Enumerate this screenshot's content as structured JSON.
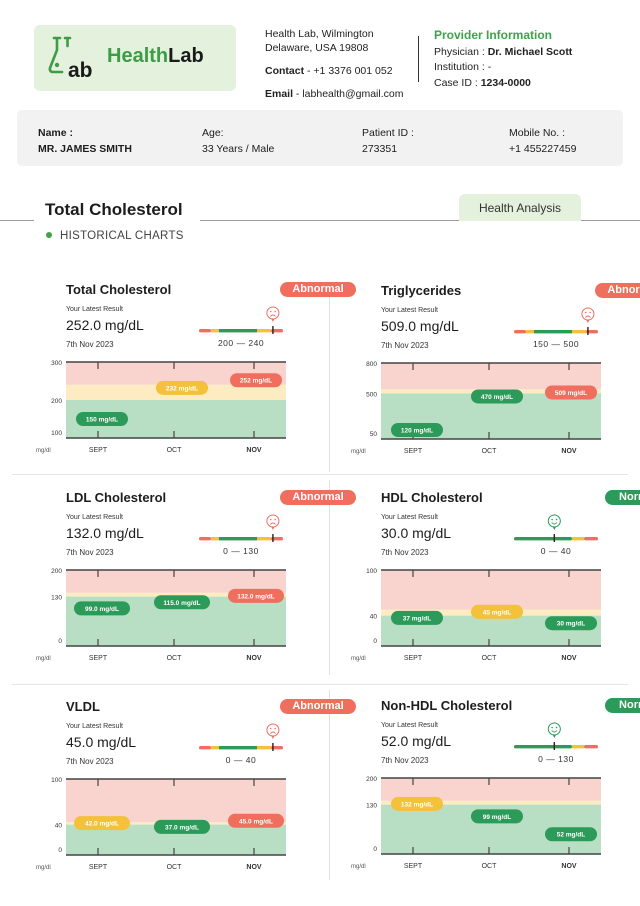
{
  "header": {
    "brand_prefix": "Health",
    "brand_suffix": "Lab",
    "address_line1": "Health Lab, Wilmington",
    "address_line2": "Delaware, USA 19808",
    "contact_label": "Contact",
    "contact_value": " - +1 3376 001 052",
    "email_label": "Email",
    "email_value": " - labhealth@gmail.com",
    "provider": {
      "heading": "Provider Information",
      "physician_label": "Physician : ",
      "physician_name": "Dr. Michael Scott",
      "institution_label": "Institution : -",
      "case_label": "Case ID : ",
      "case_id": "1234-0000"
    }
  },
  "patient": {
    "name_label": "Name :",
    "name": "MR. JAMES SMITH",
    "age_label": "Age:",
    "age": "33 Years / Male",
    "id_label": "Patient ID :",
    "id": "273351",
    "mobile_label": "Mobile No. :",
    "mobile": "+1 455227459"
  },
  "section": {
    "title": "Total Cholesterol",
    "tab": "Health Analysis",
    "subtitle": "HISTORICAL CHARTS"
  },
  "colors": {
    "green": "#2c9a58",
    "yellow": "#f3c13a",
    "red": "#ef6e5e",
    "band_red": "#f9d3cd",
    "band_yellow": "#fdecc2",
    "band_green": "#b8dfc4",
    "accent_green": "#3ea34a"
  },
  "cards": [
    {
      "title": "Total Cholesterol",
      "status": "Abnormal",
      "status_type": "abnormal",
      "latest_label": "Your Latest Result",
      "value": "252.0 mg/dL",
      "date": "7th Nov 2023",
      "range": "200 — 240",
      "gauge_position": 0.88,
      "face": "sad-face-icon",
      "chart_data": {
        "type": "line",
        "x": [
          "SEPT",
          "OCT",
          "NOV"
        ],
        "y_ticks": [
          "300",
          "200",
          "100"
        ],
        "y_unit": "mg/dl",
        "ylim": [
          100,
          300
        ],
        "normal_max": 200,
        "borderline_max": 240,
        "points": [
          {
            "x": "SEPT",
            "value": 150,
            "label": "150 mg/dL",
            "status": "green"
          },
          {
            "x": "OCT",
            "value": 232,
            "label": "232 mg/dL",
            "status": "yellow"
          },
          {
            "x": "NOV",
            "value": 252,
            "label": "252 mg/dL",
            "status": "red"
          }
        ]
      }
    },
    {
      "title": "Triglycerides",
      "status": "Abnormal",
      "status_type": "abnormal",
      "latest_label": "Your Latest Result",
      "value": "509.0 mg/dL",
      "date": "7th Nov 2023",
      "range": "150 — 500",
      "gauge_position": 0.88,
      "face": "sad-face-icon",
      "chart_data": {
        "type": "line",
        "x": [
          "SEPT",
          "OCT",
          "NOV"
        ],
        "y_ticks": [
          "800",
          "500",
          "50"
        ],
        "y_unit": "mg/dl",
        "ylim": [
          50,
          800
        ],
        "normal_max": 500,
        "borderline_max": 540,
        "points": [
          {
            "x": "SEPT",
            "value": 120,
            "label": "120 mg/dL",
            "status": "green"
          },
          {
            "x": "OCT",
            "value": 470,
            "label": "470 mg/dL",
            "status": "green"
          },
          {
            "x": "NOV",
            "value": 509,
            "label": "509 mg/dL",
            "status": "red"
          }
        ]
      }
    },
    {
      "title": "LDL Cholesterol",
      "status": "Abnormal",
      "status_type": "abnormal",
      "latest_label": "Your Latest Result",
      "value": "132.0 mg/dL",
      "date": "7th Nov 2023",
      "range": "0 — 130",
      "gauge_position": 0.88,
      "face": "sad-face-icon",
      "chart_data": {
        "type": "line",
        "x": [
          "SEPT",
          "OCT",
          "NOV"
        ],
        "y_ticks": [
          "200",
          "130",
          "0"
        ],
        "y_unit": "mg/dl",
        "ylim": [
          0,
          200
        ],
        "normal_max": 130,
        "borderline_max": 140,
        "points": [
          {
            "x": "SEPT",
            "value": 99,
            "label": "99.0 mg/dL",
            "status": "green"
          },
          {
            "x": "OCT",
            "value": 115,
            "label": "115.0 mg/dL",
            "status": "green"
          },
          {
            "x": "NOV",
            "value": 132,
            "label": "132.0 mg/dL",
            "status": "red"
          }
        ]
      }
    },
    {
      "title": "HDL Cholesterol",
      "status": "Normal",
      "status_type": "normal",
      "latest_label": "Your Latest Result",
      "value": "30.0 mg/dL",
      "date": "7th Nov 2023",
      "range": "0 — 40",
      "gauge_position": 0.48,
      "face": "smile-face-icon",
      "chart_data": {
        "type": "line",
        "x": [
          "SEPT",
          "OCT",
          "NOV"
        ],
        "y_ticks": [
          "100",
          "40",
          "0"
        ],
        "y_unit": "mg/dl",
        "ylim": [
          0,
          100
        ],
        "normal_max": 40,
        "borderline_max": 48,
        "points": [
          {
            "x": "SEPT",
            "value": 37,
            "label": "37 mg/dL",
            "status": "green"
          },
          {
            "x": "OCT",
            "value": 45,
            "label": "45 mg/dL",
            "status": "yellow"
          },
          {
            "x": "NOV",
            "value": 30,
            "label": "30 mg/dL",
            "status": "green"
          }
        ]
      }
    },
    {
      "title": "VLDL",
      "status": "Abnormal",
      "status_type": "abnormal",
      "latest_label": "Your Latest Result",
      "value": "45.0 mg/dL",
      "date": "7th Nov 2023",
      "range": "0 — 40",
      "gauge_position": 0.88,
      "face": "sad-face-icon",
      "chart_data": {
        "type": "line",
        "x": [
          "SEPT",
          "OCT",
          "NOV"
        ],
        "y_ticks": [
          "100",
          "40",
          "0"
        ],
        "y_unit": "mg/dl",
        "ylim": [
          0,
          100
        ],
        "normal_max": 40,
        "borderline_max": 43,
        "points": [
          {
            "x": "SEPT",
            "value": 42,
            "label": "42.0 mg/dL",
            "status": "yellow"
          },
          {
            "x": "OCT",
            "value": 37,
            "label": "37.0 mg/dL",
            "status": "green"
          },
          {
            "x": "NOV",
            "value": 45,
            "label": "45.0 mg/dL",
            "status": "red"
          }
        ]
      }
    },
    {
      "title": "Non-HDL Cholesterol",
      "status": "Normal",
      "status_type": "normal",
      "latest_label": "Your Latest Result",
      "value": "52.0 mg/dL",
      "date": "7th Nov 2023",
      "range": "0 — 130",
      "gauge_position": 0.48,
      "face": "smile-face-icon",
      "chart_data": {
        "type": "line",
        "x": [
          "SEPT",
          "OCT",
          "NOV"
        ],
        "y_ticks": [
          "200",
          "130",
          "0"
        ],
        "y_unit": "mg/dl",
        "ylim": [
          0,
          200
        ],
        "normal_max": 130,
        "borderline_max": 140,
        "points": [
          {
            "x": "SEPT",
            "value": 132,
            "label": "132 mg/dL",
            "status": "yellow"
          },
          {
            "x": "OCT",
            "value": 99,
            "label": "99 mg/dL",
            "status": "green"
          },
          {
            "x": "NOV",
            "value": 52,
            "label": "52 mg/dL",
            "status": "green"
          }
        ]
      }
    }
  ]
}
